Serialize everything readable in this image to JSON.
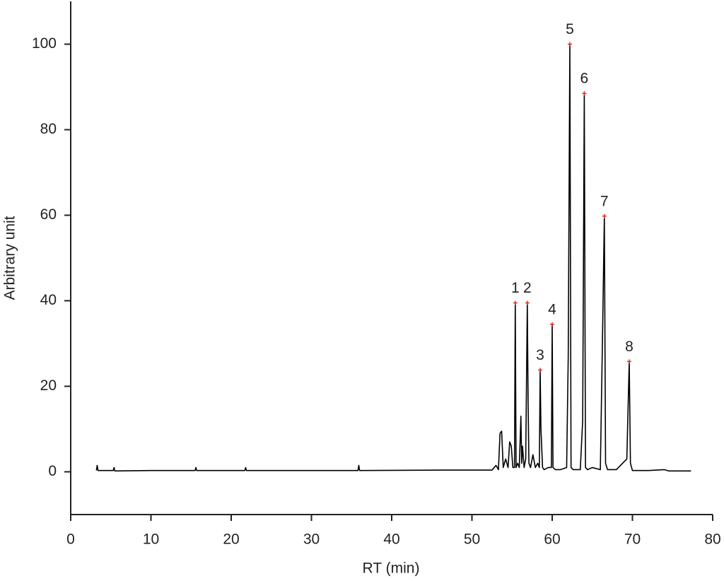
{
  "chart_data": {
    "type": "line",
    "x_label": "RT (min)",
    "y_label": "Arbitrary unit",
    "x": [
      3.2,
      3.3,
      3.4,
      5.3,
      5.4,
      5.5,
      10,
      15.5,
      15.6,
      15.7,
      21.7,
      21.8,
      21.9,
      35.8,
      35.9,
      36.0,
      46.6,
      52.5,
      53,
      53.3,
      53.5,
      53.7,
      53.9,
      54.2,
      54.5,
      54.7,
      54.9,
      55.1,
      55.3,
      55.4,
      55.5,
      55.7,
      55.9,
      56.1,
      56.2,
      56.3,
      56.5,
      56.7,
      56.9,
      57.0,
      57.1,
      57.3,
      57.6,
      57.9,
      58.2,
      58.4,
      58.5,
      58.6,
      58.8,
      59.0,
      59.5,
      59.9,
      60.0,
      60.1,
      60.4,
      61.0,
      61.8,
      62.0,
      62.2,
      62.35,
      62.6,
      63.5,
      63.8,
      64.0,
      64.15,
      64.4,
      65.0,
      66.0,
      66.3,
      66.5,
      66.65,
      66.9,
      68,
      69.3,
      69.6,
      69.75,
      70,
      72,
      74,
      74.5,
      77.3
    ],
    "values": [
      0.3,
      1.5,
      0.3,
      0.3,
      1,
      0.2,
      0.3,
      0.3,
      1,
      0.3,
      0.3,
      1,
      0.3,
      0.3,
      1.5,
      0.3,
      0.4,
      0.4,
      1.5,
      0.5,
      9,
      9.5,
      1,
      3,
      1,
      7,
      6,
      1,
      1,
      39.5,
      1,
      2,
      1,
      13,
      2,
      6,
      1,
      3,
      39.5,
      16,
      2,
      1,
      4,
      1,
      2,
      1,
      23.8,
      10,
      1,
      0.5,
      1,
      1,
      34.5,
      1,
      0.5,
      0.5,
      1,
      27,
      100,
      1,
      0.5,
      0.5,
      12,
      88.5,
      1,
      0.5,
      1,
      0.5,
      35,
      59.8,
      2,
      0.5,
      0.5,
      3,
      25.8,
      2,
      0.3,
      0.3,
      0.5,
      0.2,
      0.2
    ],
    "color": "#000000",
    "marker_color": "#e0301e",
    "annotations": [
      {
        "text": "1",
        "x": 55.4,
        "y": 39.5
      },
      {
        "text": "2",
        "x": 56.9,
        "y": 39.5
      },
      {
        "text": "3",
        "x": 58.5,
        "y": 23.8
      },
      {
        "text": "4",
        "x": 60.0,
        "y": 34.5
      },
      {
        "text": "5",
        "x": 62.2,
        "y": 100
      },
      {
        "text": "6",
        "x": 64.0,
        "y": 88.5
      },
      {
        "text": "7",
        "x": 66.5,
        "y": 59.8
      },
      {
        "text": "8",
        "x": 69.6,
        "y": 25.8
      }
    ],
    "xlim": [
      0,
      80
    ],
    "xticks": [
      0,
      10,
      20,
      30,
      40,
      50,
      60,
      70,
      80
    ],
    "ylim": [
      -10,
      110
    ],
    "yticks": [
      0,
      20,
      40,
      60,
      80,
      100
    ],
    "grid": false
  }
}
